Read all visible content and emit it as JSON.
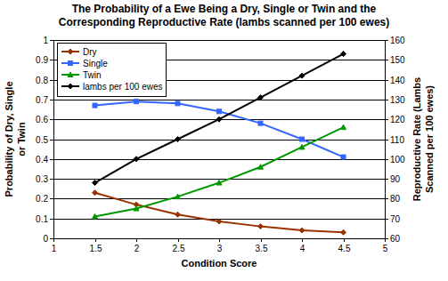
{
  "chart_data": {
    "type": "line",
    "title": "The Probability of a Ewe Being a Dry, Single or Twin and the\nCorresponding Reproductive Rate (lambs scanned per 100 ewes)",
    "x_label": "Condition Score",
    "y_label": "Probability of Dry, Single\nor Twin",
    "y2_label": "Reproductive Rate (Lambs\nScanned per 100 ewes)",
    "x": [
      1.5,
      2,
      2.5,
      3,
      3.5,
      4,
      4.5
    ],
    "series": [
      {
        "name": "Dry",
        "color": "#993300",
        "marker": "diamond",
        "values": [
          0.23,
          0.17,
          0.12,
          0.085,
          0.06,
          0.04,
          0.03
        ]
      },
      {
        "name": "Single",
        "color": "#3366ff",
        "marker": "square",
        "values": [
          0.67,
          0.69,
          0.68,
          0.64,
          0.58,
          0.5,
          0.41
        ]
      },
      {
        "name": "Twin",
        "color": "#009900",
        "marker": "triangle",
        "values": [
          0.11,
          0.15,
          0.21,
          0.28,
          0.36,
          0.46,
          0.56
        ]
      },
      {
        "name": "lambs per 100 ewes",
        "color": "#000000",
        "marker": "diamond",
        "axis": "y2",
        "values": [
          88,
          100,
          110,
          120,
          131,
          142,
          153
        ]
      }
    ],
    "xlim": [
      1,
      5
    ],
    "xticks": [
      1,
      1.5,
      2,
      2.5,
      3,
      3.5,
      4,
      4.5,
      5
    ],
    "ylim": [
      0,
      1
    ],
    "yticks": [
      0,
      0.1,
      0.2,
      0.3,
      0.4,
      0.5,
      0.6,
      0.7,
      0.8,
      0.9,
      1
    ],
    "y2lim": [
      60,
      160
    ],
    "y2ticks": [
      60,
      70,
      80,
      90,
      100,
      110,
      120,
      130,
      140,
      150,
      160
    ],
    "grid": true,
    "legend": "top-left"
  }
}
